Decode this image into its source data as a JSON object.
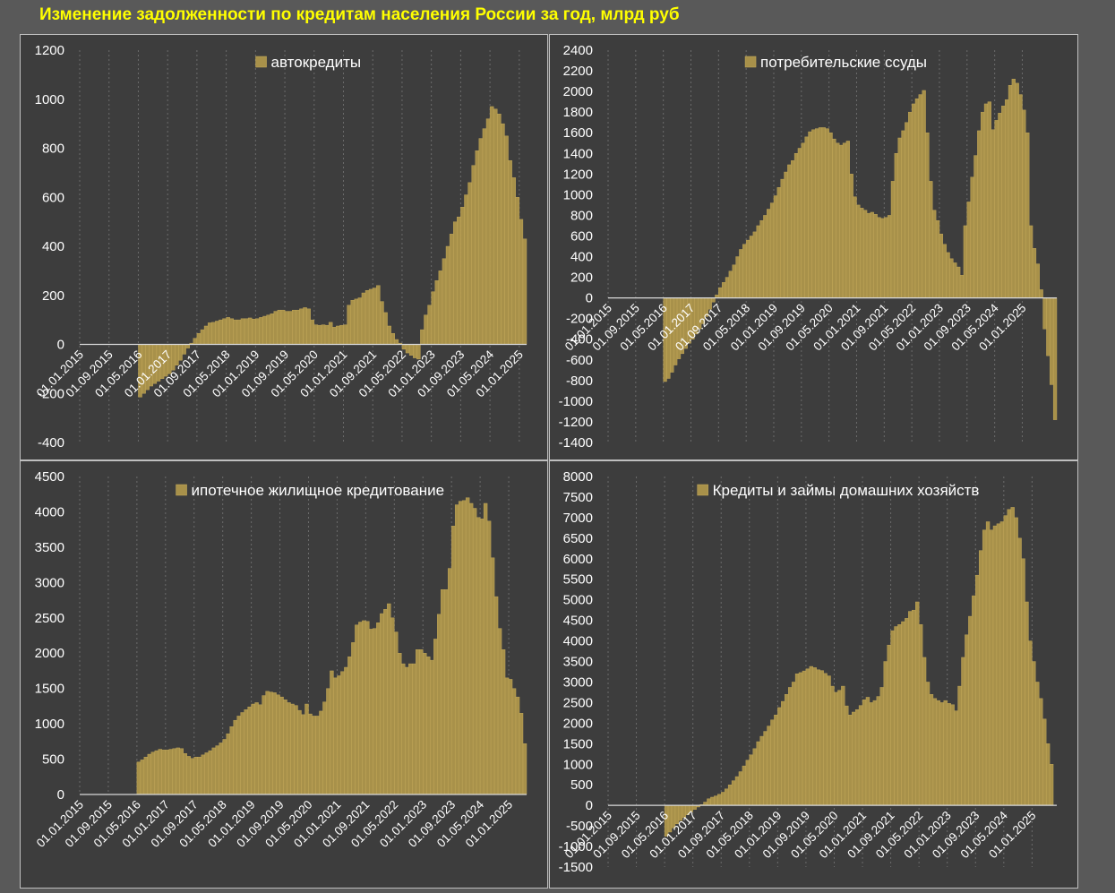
{
  "title": "Изменение задолженности по кредитам населения России за год, млрд руб",
  "colors": {
    "background": "#595959",
    "panel": "#3d3d3d",
    "bar": "#a8914a",
    "bar_edge": "#c9ad5c",
    "text": "#ffffff",
    "title": "#ffff00",
    "grid": "#6b6b6b"
  },
  "chart_data": [
    {
      "type": "bar",
      "title": "",
      "legend": "автокредиты",
      "x_labels": [
        "01.01.2015",
        "01.09.2015",
        "01.05.2016",
        "01.01.2017",
        "01.09.2017",
        "01.05.2018",
        "01.01.2019",
        "01.09.2019",
        "01.05.2020",
        "01.01.2021",
        "01.09.2021",
        "01.05.2022",
        "01.01.2023",
        "01.09.2023",
        "01.05.2024",
        "01.01.2025"
      ],
      "yticks": [
        -400,
        -200,
        0,
        200,
        400,
        600,
        800,
        1000,
        1200
      ],
      "ylim": [
        -400,
        1200
      ],
      "grid": "vertical-dotted",
      "values": [
        0,
        0,
        0,
        0,
        0,
        0,
        0,
        0,
        0,
        0,
        0,
        0,
        0,
        0,
        0,
        0,
        -215,
        -200,
        -185,
        -170,
        -160,
        -150,
        -140,
        -130,
        -120,
        -105,
        -85,
        -65,
        -40,
        -15,
        5,
        25,
        45,
        60,
        75,
        88,
        90,
        95,
        100,
        105,
        110,
        105,
        100,
        100,
        105,
        105,
        108,
        103,
        105,
        110,
        115,
        120,
        125,
        135,
        140,
        140,
        135,
        135,
        140,
        140,
        145,
        150,
        145,
        100,
        80,
        78,
        80,
        78,
        90,
        70,
        75,
        78,
        80,
        160,
        180,
        185,
        190,
        210,
        220,
        225,
        230,
        240,
        175,
        130,
        75,
        45,
        20,
        5,
        -20,
        -35,
        -45,
        -55,
        -60,
        60,
        120,
        160,
        215,
        260,
        300,
        350,
        400,
        450,
        500,
        520,
        560,
        610,
        660,
        730,
        790,
        840,
        880,
        920,
        970,
        960,
        940,
        900,
        850,
        750,
        680,
        600,
        510,
        430
      ]
    },
    {
      "type": "bar",
      "title": "",
      "legend": "потребительские ссуды",
      "x_labels": [
        "01.01.2015",
        "01.09.2015",
        "01.05.2016",
        "01.01.2017",
        "01.09.2017",
        "01.05.2018",
        "01.01.2019",
        "01.09.2019",
        "01.05.2020",
        "01.01.2021",
        "01.09.2021",
        "01.05.2022",
        "01.01.2023",
        "01.09.2023",
        "01.05.2024",
        "01.01.2025"
      ],
      "yticks": [
        -1400,
        -1200,
        -1000,
        -800,
        -600,
        -400,
        -200,
        0,
        200,
        400,
        600,
        800,
        1000,
        1200,
        1400,
        1600,
        1800,
        2000,
        2200,
        2400
      ],
      "ylim": [
        -1400,
        2400
      ],
      "grid": "vertical-dotted",
      "values": [
        0,
        0,
        0,
        0,
        0,
        0,
        0,
        0,
        0,
        0,
        0,
        0,
        0,
        0,
        0,
        0,
        -810,
        -780,
        -720,
        -650,
        -590,
        -540,
        -490,
        -440,
        -400,
        -350,
        -300,
        -250,
        -180,
        -110,
        -40,
        30,
        100,
        150,
        200,
        260,
        320,
        400,
        470,
        520,
        560,
        600,
        640,
        700,
        750,
        800,
        860,
        920,
        990,
        1070,
        1150,
        1220,
        1290,
        1330,
        1400,
        1450,
        1500,
        1560,
        1610,
        1630,
        1640,
        1650,
        1650,
        1640,
        1600,
        1540,
        1500,
        1480,
        1500,
        1520,
        1200,
        980,
        900,
        870,
        850,
        820,
        830,
        810,
        780,
        770,
        780,
        800,
        1130,
        1400,
        1550,
        1620,
        1700,
        1800,
        1880,
        1930,
        1970,
        2010,
        1600,
        1130,
        850,
        750,
        620,
        520,
        440,
        380,
        340,
        300,
        220,
        700,
        930,
        1170,
        1380,
        1620,
        1800,
        1880,
        1900,
        1630,
        1720,
        1790,
        1860,
        1920,
        2060,
        2120,
        2080,
        1970,
        1820,
        1600,
        700,
        480,
        330,
        80,
        -300,
        -560,
        -840,
        -1180
      ]
    },
    {
      "type": "bar",
      "title": "",
      "legend": "ипотечное жилищное кредитование",
      "x_labels": [
        "01.01.2015",
        "01.09.2015",
        "01.05.2016",
        "01.01.2017",
        "01.09.2017",
        "01.05.2018",
        "01.01.2019",
        "01.09.2019",
        "01.05.2020",
        "01.01.2021",
        "01.09.2021",
        "01.05.2022",
        "01.01.2023",
        "01.09.2023",
        "01.05.2024",
        "01.01.2025"
      ],
      "yticks": [
        0,
        500,
        1000,
        1500,
        2000,
        2500,
        3000,
        3500,
        4000,
        4500
      ],
      "ylim": [
        0,
        4500
      ],
      "grid": "vertical-dotted",
      "values": [
        0,
        0,
        0,
        0,
        0,
        0,
        0,
        0,
        0,
        0,
        0,
        0,
        0,
        0,
        0,
        0,
        460,
        490,
        530,
        570,
        600,
        620,
        640,
        630,
        630,
        640,
        650,
        660,
        650,
        580,
        540,
        510,
        530,
        530,
        560,
        590,
        620,
        660,
        690,
        730,
        780,
        860,
        960,
        1050,
        1110,
        1160,
        1200,
        1240,
        1280,
        1300,
        1270,
        1400,
        1460,
        1450,
        1440,
        1410,
        1380,
        1340,
        1300,
        1280,
        1260,
        1190,
        1130,
        1280,
        1140,
        1110,
        1110,
        1180,
        1310,
        1500,
        1750,
        1650,
        1680,
        1740,
        1800,
        1950,
        2150,
        2400,
        2440,
        2460,
        2450,
        2340,
        2350,
        2430,
        2560,
        2620,
        2700,
        2500,
        2300,
        2000,
        1850,
        1800,
        1850,
        1850,
        2050,
        2050,
        2000,
        1950,
        1900,
        2200,
        2550,
        2900,
        2900,
        3200,
        3800,
        4100,
        4150,
        4160,
        4200,
        4120,
        4050,
        3920,
        3900,
        4120,
        3870,
        3350,
        2800,
        2350,
        2050,
        1650,
        1630,
        1500,
        1380,
        1150,
        720
      ]
    },
    {
      "type": "bar",
      "title": "",
      "legend": "Кредиты и займы домашних хозяйств",
      "x_labels": [
        "01.01.2015",
        "01.09.2015",
        "01.05.2016",
        "01.01.2017",
        "01.09.2017",
        "01.05.2018",
        "01.01.2019",
        "01.09.2019",
        "01.05.2020",
        "01.01.2021",
        "01.09.2021",
        "01.05.2022",
        "01.01.2023",
        "01.09.2023",
        "01.05.2024",
        "01.01.2025"
      ],
      "yticks": [
        -1500,
        -1000,
        -500,
        0,
        500,
        1000,
        1500,
        2000,
        2500,
        3000,
        3500,
        4000,
        4500,
        5000,
        5500,
        6000,
        6500,
        7000,
        7500,
        8000
      ],
      "ylim": [
        -1500,
        8000
      ],
      "grid": "vertical-dotted",
      "values": [
        0,
        0,
        0,
        0,
        0,
        0,
        0,
        0,
        0,
        0,
        0,
        0,
        0,
        0,
        0,
        0,
        -750,
        -650,
        -550,
        -450,
        -370,
        -300,
        -230,
        -160,
        -100,
        -40,
        20,
        80,
        160,
        200,
        230,
        270,
        320,
        400,
        500,
        600,
        700,
        820,
        960,
        1100,
        1230,
        1380,
        1550,
        1680,
        1800,
        1930,
        2080,
        2200,
        2380,
        2530,
        2700,
        2870,
        3000,
        3200,
        3230,
        3270,
        3320,
        3380,
        3350,
        3300,
        3280,
        3210,
        3150,
        2900,
        2750,
        2800,
        2900,
        2420,
        2200,
        2270,
        2330,
        2430,
        2570,
        2630,
        2500,
        2550,
        2650,
        2870,
        3500,
        3900,
        4250,
        4350,
        4400,
        4470,
        4550,
        4720,
        4750,
        4950,
        4400,
        3600,
        3000,
        2700,
        2600,
        2550,
        2500,
        2550,
        2480,
        2450,
        2300,
        2900,
        3600,
        4150,
        4600,
        5100,
        5600,
        6200,
        6700,
        6900,
        6700,
        6800,
        6850,
        6900,
        7050,
        7200,
        7250,
        7000,
        6500,
        6000,
        4950,
        4000,
        3500,
        3000,
        2600,
        2100,
        1500,
        1000,
        0
      ]
    }
  ]
}
